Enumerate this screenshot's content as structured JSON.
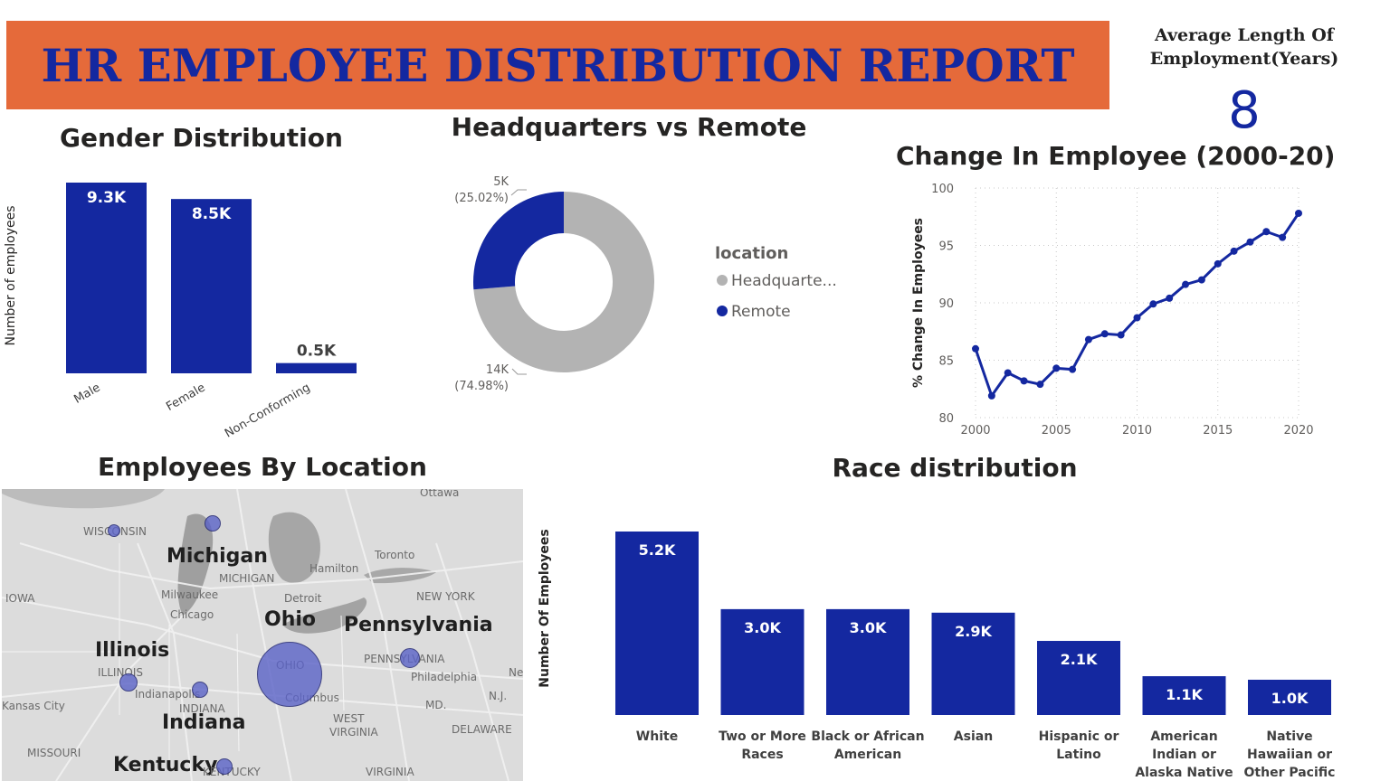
{
  "report": {
    "title": "HR EMPLOYEE DISTRIBUTION REPORT"
  },
  "kpi": {
    "label_line1": "Average Length Of",
    "label_line2": "Employment(Years)",
    "value": "8"
  },
  "colors": {
    "primary": "#1428a0",
    "banner": "#e56a3a",
    "grey": "#b3b3b3",
    "map_bubble": "#5b63c8"
  },
  "chart_data": [
    {
      "id": "gender",
      "type": "bar",
      "title": "Gender Distribution",
      "ylabel": "Number of employees",
      "categories": [
        "Male",
        "Female",
        "Non-Conforming"
      ],
      "values": [
        9300,
        8500,
        500
      ],
      "data_labels": [
        "9.3K",
        "8.5K",
        "0.5K"
      ]
    },
    {
      "id": "location",
      "type": "pie",
      "title": "Headquarters vs Remote",
      "legend_title": "location",
      "legend_labels": [
        "Headquarte...",
        "Remote"
      ],
      "labels": [
        "Headquarters",
        "Remote"
      ],
      "values": [
        14000,
        5000
      ],
      "percents": [
        74.98,
        25.02
      ],
      "data_labels": [
        {
          "value": "14K",
          "pct": "(74.98%)"
        },
        {
          "value": "5K",
          "pct": "(25.02%)"
        }
      ]
    },
    {
      "id": "change",
      "type": "line",
      "title": "Change In Employee (2000-20)",
      "ylabel": "% Change In Employees",
      "x": [
        2000,
        2001,
        2002,
        2003,
        2004,
        2005,
        2006,
        2007,
        2008,
        2009,
        2010,
        2011,
        2012,
        2013,
        2014,
        2015,
        2016,
        2017,
        2018,
        2019,
        2020
      ],
      "y": [
        86.0,
        81.9,
        83.9,
        83.2,
        82.9,
        84.3,
        84.2,
        86.8,
        87.3,
        87.2,
        88.7,
        89.9,
        90.4,
        91.6,
        92.0,
        93.4,
        94.5,
        95.3,
        96.2,
        95.7,
        97.8
      ],
      "xlim": [
        2000,
        2020
      ],
      "ylim": [
        80,
        100
      ],
      "xticks": [
        "2000",
        "2005",
        "2010",
        "2015",
        "2020"
      ],
      "yticks": [
        "100",
        "95",
        "90",
        "85",
        "80"
      ],
      "grid": true
    },
    {
      "id": "race",
      "type": "bar",
      "title": "Race distribution",
      "ylabel": "Number Of Employees",
      "categories": [
        [
          "White"
        ],
        [
          "Two or More",
          "Races"
        ],
        [
          "Black or African",
          "American"
        ],
        [
          "Asian"
        ],
        [
          "Hispanic or",
          "Latino"
        ],
        [
          "American",
          "Indian or",
          "Alaska Native"
        ],
        [
          "Native",
          "Hawaiian or",
          "Other Pacific"
        ]
      ],
      "values": [
        5200,
        3000,
        3000,
        2900,
        2100,
        1100,
        1000
      ],
      "data_labels": [
        "5.2K",
        "3.0K",
        "3.0K",
        "2.9K",
        "2.1K",
        "1.1K",
        "1.0K"
      ]
    }
  ],
  "map": {
    "title": "Employees By Location",
    "state_labels": [
      "Michigan",
      "Ohio",
      "Pennsylvania",
      "Illinois",
      "Indiana",
      "Kentucky"
    ],
    "place_labels": [
      "WISCONSIN",
      "MICHIGAN",
      "Milwaukee",
      "Chicago",
      "IOWA",
      "ILLINOIS",
      "Indianapolis",
      "INDIANA",
      "Kansas City",
      "MISSOURI",
      "Ottawa",
      "Toronto",
      "Hamilton",
      "Detroit",
      "NEW YORK",
      "PENNSYLVANIA",
      "Philadelphia",
      "OHIO",
      "Columbus",
      "WEST",
      "VIRGINIA",
      "MD.",
      "DELAWARE",
      "VIRGINIA",
      "KENTUCKY",
      "N.J.",
      "Ne"
    ],
    "bubbles": [
      {
        "name": "Ohio",
        "size": "large"
      },
      {
        "name": "Michigan",
        "size": "small"
      },
      {
        "name": "Wisconsin",
        "size": "small"
      },
      {
        "name": "Illinois",
        "size": "small"
      },
      {
        "name": "Indiana",
        "size": "small"
      },
      {
        "name": "Pennsylvania",
        "size": "small"
      },
      {
        "name": "Kentucky",
        "size": "small"
      }
    ]
  }
}
